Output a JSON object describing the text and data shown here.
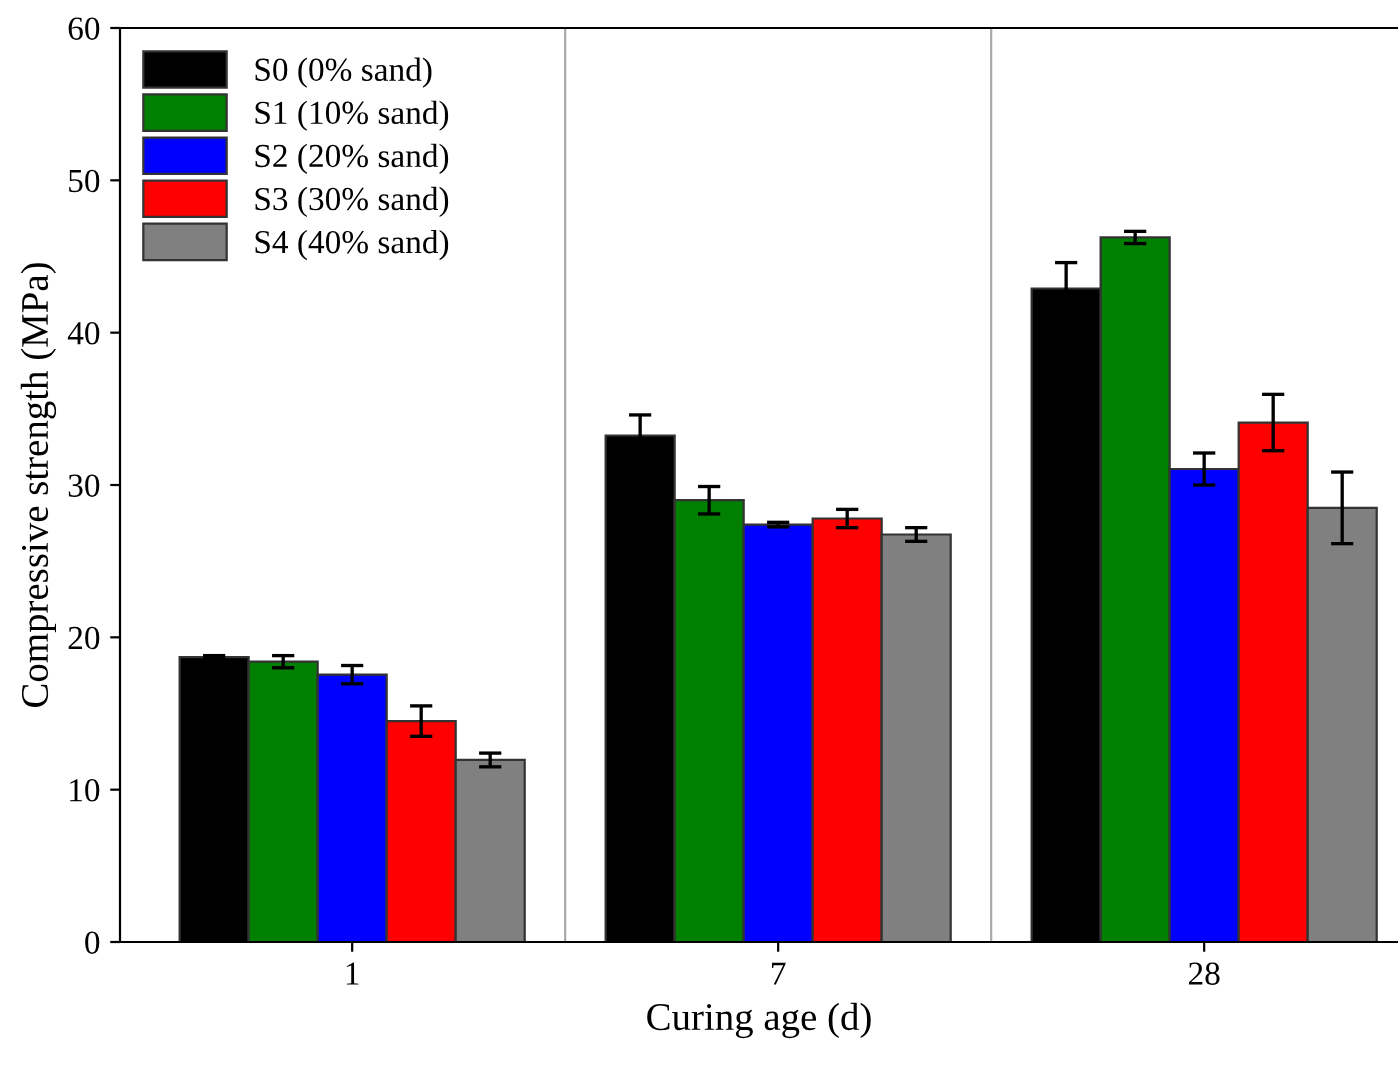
{
  "chart_data": {
    "type": "bar",
    "xlabel": "Curing age (d)",
    "ylabel": "Compressive strength (MPa)",
    "categories": [
      "1",
      "7",
      "28"
    ],
    "series": [
      {
        "name": "S0 (0% sand)",
        "color": "#000000",
        "values": [
          18.7,
          33.25,
          42.9
        ],
        "errors": [
          0.1,
          1.35,
          1.7
        ]
      },
      {
        "name": "S1 (10% sand)",
        "color": "#007f00",
        "values": [
          18.4,
          29.0,
          46.25
        ],
        "errors": [
          0.4,
          0.9,
          0.4
        ]
      },
      {
        "name": "S2 (20% sand)",
        "color": "#0000ff",
        "values": [
          17.55,
          27.4,
          31.05
        ],
        "errors": [
          0.6,
          0.15,
          1.05
        ]
      },
      {
        "name": "S3 (30% sand)",
        "color": "#ff0000",
        "values": [
          14.5,
          27.8,
          34.1
        ],
        "errors": [
          1.0,
          0.6,
          1.85
        ]
      },
      {
        "name": "S4 (40% sand)",
        "color": "#808080",
        "values": [
          11.95,
          26.75,
          28.5
        ],
        "errors": [
          0.45,
          0.45,
          2.35
        ]
      }
    ],
    "ylim": [
      0,
      60
    ],
    "yticks": [
      0,
      10,
      20,
      30,
      40,
      50,
      60
    ],
    "grid": "x",
    "legend": "top left"
  }
}
